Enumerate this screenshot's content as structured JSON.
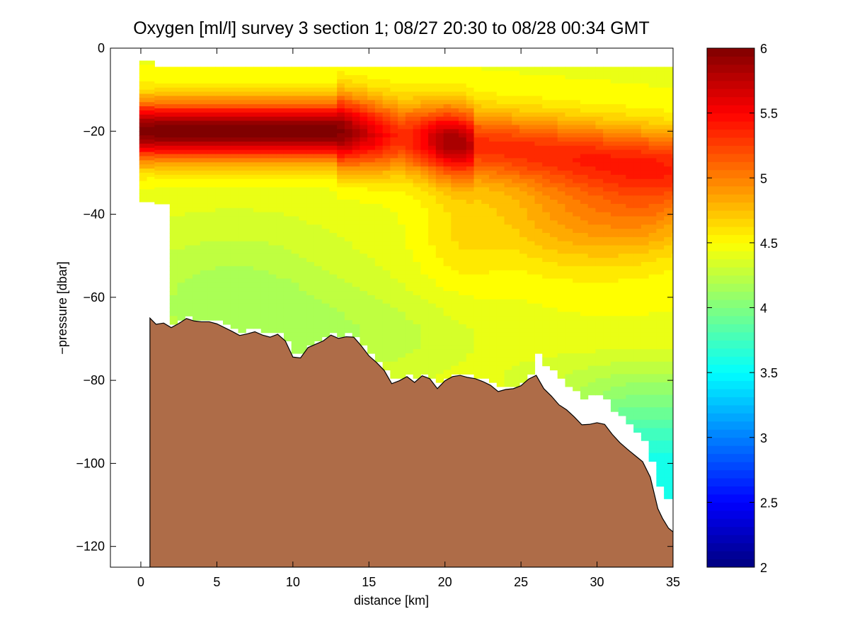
{
  "chart_data": {
    "type": "heatmap",
    "title": "Oxygen [ml/l] survey 3 section 1; 08/27 20:30 to 08/28 00:34 GMT",
    "xlabel": "distance [km]",
    "ylabel": "−pressure [dbar]",
    "xlim": [
      -2,
      35
    ],
    "ylim": [
      -125,
      0
    ],
    "x_ticks": [
      0,
      5,
      10,
      15,
      20,
      25,
      30,
      35
    ],
    "x_tick_labels": [
      "0",
      "5",
      "10",
      "15",
      "20",
      "25",
      "30",
      "35"
    ],
    "y_ticks": [
      0,
      -20,
      -40,
      -60,
      -80,
      -100,
      -120
    ],
    "y_tick_labels": [
      "0",
      "−20",
      "−40",
      "−60",
      "−80",
      "−100",
      "−120"
    ],
    "colorbar": {
      "range": [
        2,
        6
      ],
      "ticks": [
        2,
        2.5,
        3,
        3.5,
        4,
        4.5,
        5,
        5.5,
        6
      ],
      "tick_labels": [
        "2",
        "2.5",
        "3",
        "3.5",
        "4",
        "4.5",
        "5",
        "5.5",
        "6"
      ],
      "colormap": "jet"
    },
    "features": [
      {
        "name": "high-oxygen core (max ~6 ml/l)",
        "x": [
          0,
          12
        ],
        "depth": [
          -28,
          -14
        ]
      },
      {
        "name": "secondary maximum (~5.5 ml/l)",
        "x": [
          18,
          23
        ],
        "depth": [
          -32,
          -22
        ]
      },
      {
        "name": "minimum near bottom (~3.6 ml/l)",
        "x": [
          30,
          35
        ],
        "depth": [
          -105,
          -85
        ]
      }
    ],
    "bathymetry": {
      "color": "#ae6c48",
      "x": [
        0.6,
        1.0,
        1.5,
        2.0,
        2.5,
        3.0,
        3.5,
        4.0,
        4.5,
        5.0,
        6.0,
        6.5,
        7.0,
        7.5,
        8.0,
        8.5,
        9.0,
        9.5,
        10.0,
        10.5,
        11.0,
        11.5,
        12.0,
        12.5,
        13.0,
        13.5,
        14.0,
        14.5,
        15.0,
        15.5,
        16.0,
        16.5,
        17.0,
        17.5,
        18.0,
        18.5,
        19.0,
        19.5,
        20.0,
        20.5,
        21.0,
        21.5,
        22.0,
        22.5,
        23.0,
        23.5,
        24.0,
        24.5,
        25.0,
        25.5,
        26.0,
        26.5,
        27.0,
        27.5,
        28.0,
        28.5,
        29.0,
        29.5,
        30.0,
        30.5,
        31.0,
        31.5,
        32.0,
        32.5,
        33.0,
        33.5,
        34.0,
        34.3,
        34.7,
        35.0
      ],
      "depth": [
        -65,
        -66.5,
        -66.2,
        -67.3,
        -66.3,
        -65.1,
        -65.7,
        -65.9,
        -65.9,
        -66.4,
        -68.2,
        -69.2,
        -68.8,
        -68.3,
        -69.1,
        -69.6,
        -68.9,
        -70.5,
        -74.4,
        -74.6,
        -72.1,
        -71.3,
        -70.5,
        -69.1,
        -69.9,
        -69.5,
        -69.6,
        -71.7,
        -74.1,
        -75.7,
        -77.6,
        -80.8,
        -80.1,
        -79.1,
        -80.5,
        -78.9,
        -79.6,
        -82.0,
        -80.1,
        -79.1,
        -78.8,
        -79.3,
        -79.6,
        -80.3,
        -81.2,
        -82.7,
        -82.2,
        -82.0,
        -81.3,
        -79.7,
        -78.8,
        -82.0,
        -83.8,
        -85.9,
        -87.1,
        -88.8,
        -90.7,
        -90.6,
        -90.2,
        -90.6,
        -93.0,
        -95.0,
        -96.6,
        -98.1,
        -99.6,
        -103.3,
        -110.9,
        -113.2,
        -115.6,
        -116.5
      ]
    }
  }
}
